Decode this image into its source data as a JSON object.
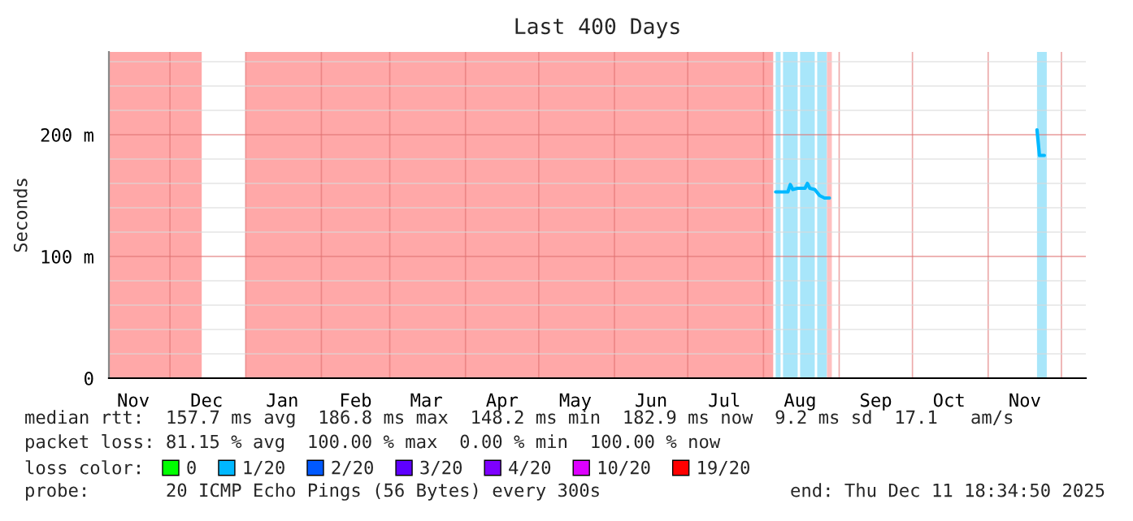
{
  "chart_data": {
    "type": "line",
    "title": "Last 400 Days",
    "ylabel": "Seconds",
    "xlim": [
      "2024-11-06",
      "2025-12-11"
    ],
    "xticks": [
      {
        "value": "2024-11-16",
        "label": "Nov"
      },
      {
        "value": "2024-12-01",
        "label": null
      },
      {
        "value": "2024-12-16",
        "label": "Dec"
      },
      {
        "value": "2025-01-01",
        "label": null
      },
      {
        "value": "2025-01-16",
        "label": "Jan"
      },
      {
        "value": "2025-02-01",
        "label": null
      },
      {
        "value": "2025-02-15",
        "label": "Feb"
      },
      {
        "value": "2025-03-01",
        "label": null
      },
      {
        "value": "2025-03-16",
        "label": "Mar"
      },
      {
        "value": "2025-04-01",
        "label": null
      },
      {
        "value": "2025-04-16",
        "label": "Apr"
      },
      {
        "value": "2025-05-01",
        "label": null
      },
      {
        "value": "2025-05-16",
        "label": "May"
      },
      {
        "value": "2025-06-01",
        "label": null
      },
      {
        "value": "2025-06-16",
        "label": "Jun"
      },
      {
        "value": "2025-07-01",
        "label": null
      },
      {
        "value": "2025-07-16",
        "label": "Jul"
      },
      {
        "value": "2025-08-01",
        "label": null
      },
      {
        "value": "2025-08-16",
        "label": "Aug"
      },
      {
        "value": "2025-09-01",
        "label": null
      },
      {
        "value": "2025-09-16",
        "label": "Sep"
      },
      {
        "value": "2025-10-01",
        "label": null
      },
      {
        "value": "2025-10-16",
        "label": "Oct"
      },
      {
        "value": "2025-11-01",
        "label": null
      },
      {
        "value": "2025-11-16",
        "label": "Nov"
      },
      {
        "value": "2025-12-01",
        "label": null
      }
    ],
    "ylim": [
      0,
      268
    ],
    "yticks": [
      {
        "value": 0,
        "label": "0"
      },
      {
        "value": 20,
        "label": null
      },
      {
        "value": 40,
        "label": null
      },
      {
        "value": 60,
        "label": null
      },
      {
        "value": 80,
        "label": null
      },
      {
        "value": 100,
        "label": "100 m"
      },
      {
        "value": 120,
        "label": null
      },
      {
        "value": 140,
        "label": null
      },
      {
        "value": 160,
        "label": null
      },
      {
        "value": 180,
        "label": null
      },
      {
        "value": 200,
        "label": "200 m"
      },
      {
        "value": 220,
        "label": null
      },
      {
        "value": 240,
        "label": null
      },
      {
        "value": 260,
        "label": null
      }
    ],
    "grid": true,
    "legend": "bottom",
    "legend_title": "loss color:",
    "bands": [
      {
        "axis": "x",
        "from": "2024-11-06",
        "to": "2024-12-14",
        "color": "#ffa8a8"
      },
      {
        "axis": "x",
        "from": "2025-01-01",
        "to": "2025-08-05",
        "color": "#ffa8a8"
      },
      {
        "axis": "x",
        "from": "2025-08-06",
        "to": "2025-08-08",
        "color": "#a8e6fa"
      },
      {
        "axis": "x",
        "from": "2025-08-09",
        "to": "2025-08-15",
        "color": "#a8e6fa"
      },
      {
        "axis": "x",
        "from": "2025-08-16",
        "to": "2025-08-22",
        "color": "#a8e6fa"
      },
      {
        "axis": "x",
        "from": "2025-08-23",
        "to": "2025-08-27",
        "color": "#a8e6fa"
      },
      {
        "axis": "x",
        "from": "2025-08-27",
        "to": "2025-08-29",
        "color": "#ffc0c0"
      },
      {
        "axis": "x",
        "from": "2025-11-21",
        "to": "2025-11-25",
        "color": "#a8e6fa"
      }
    ],
    "series": [
      {
        "color": "#00b8ff",
        "x": [
          "2025-08-06",
          "2025-08-11",
          "2025-08-12",
          "2025-08-13",
          "2025-08-15",
          "2025-08-18",
          "2025-08-19",
          "2025-08-20",
          "2025-08-22",
          "2025-08-24",
          "2025-08-26",
          "2025-08-28",
          "2025-09-15",
          "2025-11-21",
          "2025-11-22",
          "2025-11-24"
        ],
        "values": [
          153,
          153,
          159,
          155,
          156,
          156,
          160,
          156,
          155,
          150,
          148,
          148,
          null,
          204,
          183,
          183
        ]
      },
      {
        "name": "0",
        "color": "#00ff00"
      },
      {
        "name": "1/20",
        "color": "#00b8ff"
      },
      {
        "name": "2/20",
        "color": "#0059ff"
      },
      {
        "name": "3/20",
        "color": "#5e00ff"
      },
      {
        "name": "4/20",
        "color": "#7e00ff"
      },
      {
        "name": "10/20",
        "color": "#dd00ff"
      },
      {
        "name": "19/20",
        "color": "#ff0000"
      }
    ],
    "annotations": [
      "median rtt:  157.7 ms avg  186.8 ms max  148.2 ms min  182.9 ms now  9.2 ms sd  17.1   am/s",
      "packet loss: 81.15 % avg  100.00 % max  0.00 % min  100.00 % now",
      "probe:       20 ICMP Echo Pings (56 Bytes) every 300s",
      "end: Thu Dec 11 18:34:50 2025"
    ]
  }
}
